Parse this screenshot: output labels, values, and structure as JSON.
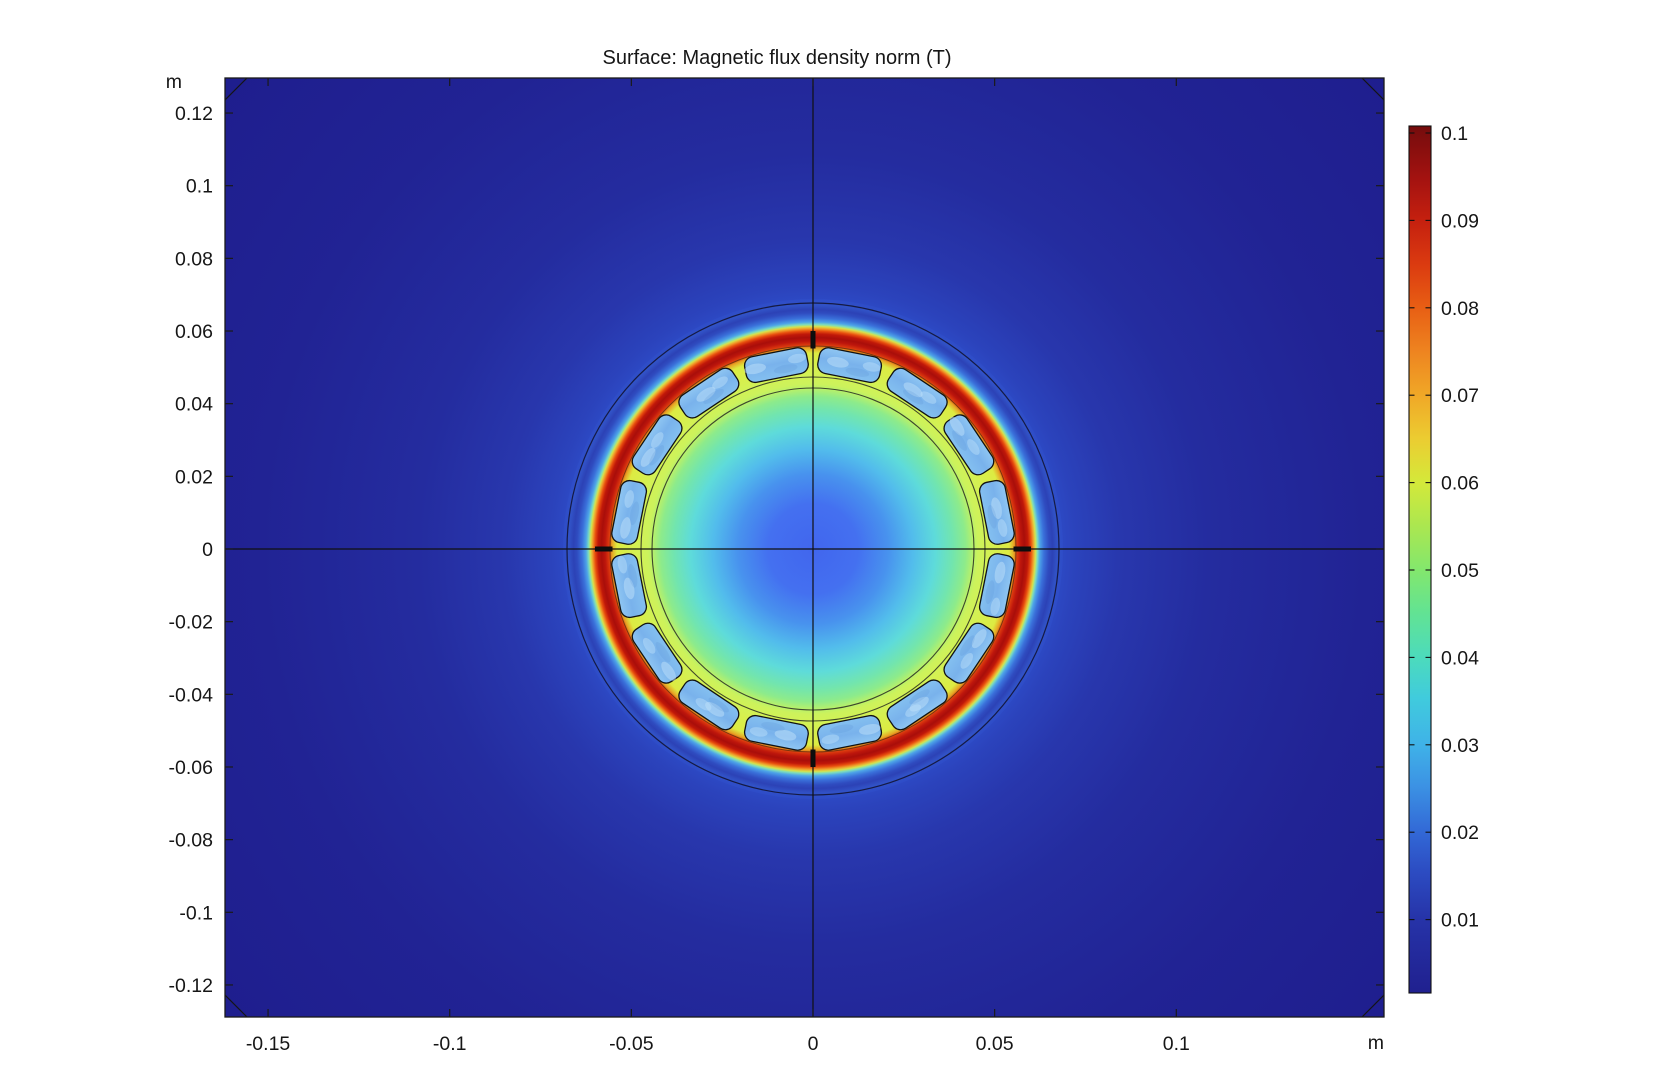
{
  "title": "Surface: Magnetic flux density norm (T)",
  "axes": {
    "x_unit": "m",
    "y_unit": "m",
    "x_tick_labels": [
      "-0.15",
      "-0.1",
      "-0.05",
      "0",
      "0.05",
      "0.1"
    ],
    "x_tick_values": [
      -0.15,
      -0.1,
      -0.05,
      0,
      0.05,
      0.1
    ],
    "y_tick_labels": [
      "0.12",
      "0.1",
      "0.08",
      "0.06",
      "0.04",
      "0.02",
      "0",
      "-0.02",
      "-0.04",
      "-0.06",
      "-0.08",
      "-0.1",
      "-0.12"
    ],
    "y_tick_values": [
      0.12,
      0.1,
      0.08,
      0.06,
      0.04,
      0.02,
      0,
      -0.02,
      -0.04,
      -0.06,
      -0.08,
      -0.1,
      -0.12
    ]
  },
  "colorbar": {
    "unit": "T",
    "max": 0.1,
    "min": 0,
    "tick_labels": [
      "0.1",
      "0.09",
      "0.08",
      "0.07",
      "0.06",
      "0.05",
      "0.04",
      "0.03",
      "0.02",
      "0.01"
    ],
    "tick_values": [
      0.1,
      0.09,
      0.08,
      0.07,
      0.06,
      0.05,
      0.04,
      0.03,
      0.02,
      0.01
    ],
    "colormap": "rainbow"
  },
  "chart_data": {
    "type": "heatmap",
    "title": "Surface: Magnetic flux density norm (T)",
    "x_unit": "m",
    "y_unit": "m",
    "xlim": [
      -0.162,
      0.157
    ],
    "ylim": [
      -0.13,
      0.129
    ],
    "x_ticks": [
      -0.15,
      -0.1,
      -0.05,
      0,
      0.05,
      0.1
    ],
    "y_ticks": [
      0.12,
      0.1,
      0.08,
      0.06,
      0.04,
      0.02,
      0,
      -0.02,
      -0.04,
      -0.06,
      -0.08,
      -0.1,
      -0.12
    ],
    "colorbar": {
      "unit": "T",
      "min": 0,
      "max": 0.1,
      "ticks": [
        0.1,
        0.09,
        0.08,
        0.07,
        0.06,
        0.05,
        0.04,
        0.03,
        0.02,
        0.01
      ],
      "colormap": "rainbow"
    },
    "annotations": [
      "crosshair axes through origin (0,0)",
      "45-degree chamfer lines at all four plot corners (infinite-element domain corners)"
    ],
    "field": {
      "description": "Magnetic flux density norm around a circular electric-machine cross-section centered at the origin",
      "far_background_B_T": 0.004,
      "center_B_T": 0.02,
      "regions": [
        {
          "name": "outer-boundary-circle",
          "radius_m": 0.0677
        },
        {
          "name": "low-field-dip-ring",
          "mid_radius_m": 0.0645,
          "B_T": 0.008
        },
        {
          "name": "rainbow-transition-ring",
          "inner_radius_m": 0.0597,
          "outer_radius_m": 0.0637,
          "B_T": "0.1 falling to 0.01 outward"
        },
        {
          "name": "saturated-red-ring",
          "inner_radius_m": 0.0559,
          "outer_radius_m": 0.0597,
          "B_T": 0.1
        },
        {
          "name": "slot-ring",
          "inner_radius_m": 0.0481,
          "outer_radius_m": 0.0553,
          "slot_count": 16,
          "slot_B_T": 0.025,
          "tooth_B_T": 0.06,
          "notes": "16 rounded rectangular slots, light blue, separated by yellow-green teeth; black radial bars at 0/90/180/270 degrees"
        },
        {
          "name": "inner-yellow-green-ring",
          "inner_radius_m": 0.0443,
          "outer_radius_m": 0.0473,
          "B_T": 0.058
        },
        {
          "name": "core-disc",
          "radius_m": 0.0443,
          "edge_B_T": 0.05,
          "mid_B_T": 0.035,
          "center_B_T": 0.02
        }
      ]
    }
  },
  "colors": {
    "page_background": "#ffffff",
    "frame": "#1a1a1a",
    "text": "#161616",
    "crosshair": "#101010",
    "slot_fill_light": "#8fc6f2",
    "slot_fill_dark": "#79b2ec",
    "slot_mottle_light": "#bfe2fa",
    "slot_mottle_dark": "#5b90d8",
    "cardinal_bar": "#0d0d0d",
    "background_stops": [
      [
        0.0,
        "#2e4cc8"
      ],
      [
        0.262,
        "#2e4cc8"
      ],
      [
        0.285,
        "#2b43bc"
      ],
      [
        0.335,
        "#2837ad"
      ],
      [
        0.43,
        "#242c9f"
      ],
      [
        0.6,
        "#212394"
      ],
      [
        0.85,
        "#1e1d8d"
      ],
      [
        1.0,
        "#1d1b89"
      ]
    ],
    "disc_stops": [
      [
        0.0,
        "#4166ee"
      ],
      [
        0.18,
        "#4470f0"
      ],
      [
        0.3,
        "#4892ee"
      ],
      [
        0.4,
        "#52bcec"
      ],
      [
        0.49,
        "#5edbda"
      ],
      [
        0.56,
        "#72e5ae"
      ],
      [
        0.61,
        "#8deb8b"
      ],
      [
        0.64,
        "#b5f06c"
      ],
      [
        0.66,
        "#ccf25c"
      ],
      [
        0.704,
        "#d4f153"
      ],
      [
        0.784,
        "#ddeb42"
      ],
      [
        0.804,
        "#e6a524"
      ],
      [
        0.816,
        "#dd3b0e"
      ],
      [
        0.832,
        "#bd160c"
      ],
      [
        0.846,
        "#a90e0a"
      ],
      [
        0.86,
        "#c01809"
      ],
      [
        0.872,
        "#e84d0e"
      ],
      [
        0.882,
        "#f0a02b"
      ],
      [
        0.89,
        "#d6e24c"
      ],
      [
        0.898,
        "#7eddbb"
      ],
      [
        0.908,
        "#4da4e8"
      ],
      [
        0.924,
        "#3a70da"
      ],
      [
        0.944,
        "#2f4cc0"
      ],
      [
        0.958,
        "#2c42b6"
      ],
      [
        0.976,
        "#3152c6"
      ],
      [
        1.0,
        "#2e4cc8"
      ]
    ],
    "colorbar_stops": [
      [
        0.0,
        "#730c0c"
      ],
      [
        0.008,
        "#7b0d0d"
      ],
      [
        0.06,
        "#a31210"
      ],
      [
        0.109,
        "#c5200f"
      ],
      [
        0.16,
        "#db3b10"
      ],
      [
        0.21,
        "#e85f14"
      ],
      [
        0.26,
        "#ee8420"
      ],
      [
        0.311,
        "#f0a827"
      ],
      [
        0.36,
        "#eccc31"
      ],
      [
        0.411,
        "#d4e93a"
      ],
      [
        0.46,
        "#ace74f"
      ],
      [
        0.512,
        "#83e76d"
      ],
      [
        0.56,
        "#63e392"
      ],
      [
        0.613,
        "#4cdbbc"
      ],
      [
        0.66,
        "#40cbdd"
      ],
      [
        0.714,
        "#3fb2e8"
      ],
      [
        0.76,
        "#3c93e4"
      ],
      [
        0.815,
        "#3268d6"
      ],
      [
        0.86,
        "#2c4cc2"
      ],
      [
        0.915,
        "#2633a8"
      ],
      [
        1.0,
        "#20208f"
      ]
    ]
  }
}
